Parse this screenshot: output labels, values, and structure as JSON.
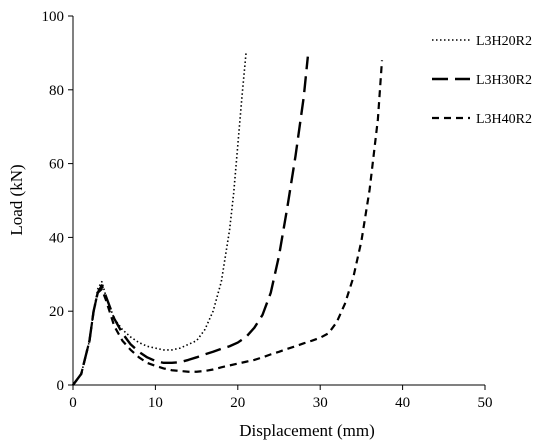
{
  "chart_data": {
    "type": "line",
    "xlabel": "Displacement (mm)",
    "ylabel": "Load (kN)",
    "xlim": [
      0,
      50
    ],
    "ylim": [
      0,
      100
    ],
    "xticks": [
      0,
      10,
      20,
      30,
      40,
      50
    ],
    "yticks": [
      0,
      20,
      40,
      60,
      80,
      100
    ],
    "x_tick_labels": [
      "0",
      "10",
      "20",
      "30",
      "40",
      "50"
    ],
    "y_tick_labels": [
      "0",
      "20",
      "40",
      "60",
      "80",
      "100"
    ],
    "grid": false,
    "legend_position": "right",
    "series": [
      {
        "name": "L3H20R2",
        "style": "dotted",
        "x": [
          0,
          1,
          2,
          2.5,
          3,
          3.5,
          4,
          5,
          6,
          7,
          8,
          9,
          10,
          11,
          12,
          13,
          14,
          15,
          16,
          17,
          18,
          19,
          19.5,
          20,
          20.5,
          21
        ],
        "y": [
          0,
          3,
          12,
          20,
          26,
          28,
          24,
          18,
          15,
          13,
          11.5,
          10.5,
          10,
          9.5,
          9.5,
          10,
          11,
          12,
          15,
          20,
          28,
          42,
          52,
          65,
          78,
          90
        ]
      },
      {
        "name": "L3H30R2",
        "style": "long-dash",
        "x": [
          0,
          1,
          2,
          2.5,
          3,
          3.5,
          4,
          5,
          6,
          7,
          8,
          9,
          10,
          11,
          12,
          13,
          14,
          15,
          16,
          17,
          18,
          19,
          20,
          21,
          22,
          23,
          24,
          25,
          26,
          27,
          28,
          28.5
        ],
        "y": [
          0,
          3,
          12,
          20,
          25,
          27,
          24,
          18,
          14,
          11,
          9,
          7.5,
          6.5,
          6,
          6,
          6.2,
          6.8,
          7.5,
          8.3,
          9,
          9.8,
          10.5,
          11.5,
          13,
          15.5,
          19,
          25,
          35,
          48,
          62,
          78,
          89
        ]
      },
      {
        "name": "L3H40R2",
        "style": "short-dash",
        "x": [
          0,
          1,
          2,
          2.5,
          3,
          3.5,
          4,
          5,
          6,
          7,
          8,
          9,
          10,
          11,
          12,
          13,
          14,
          15,
          16,
          17,
          18,
          19,
          20,
          21,
          22,
          23,
          24,
          25,
          26,
          27,
          28,
          29,
          30,
          31,
          32,
          33,
          34,
          35,
          36,
          37,
          37.5
        ],
        "y": [
          0,
          3,
          12,
          20,
          25,
          26,
          23,
          16,
          12,
          9.5,
          7.5,
          6,
          5.2,
          4.5,
          4,
          3.8,
          3.6,
          3.6,
          3.8,
          4.2,
          4.8,
          5.3,
          5.8,
          6.3,
          6.8,
          7.5,
          8.3,
          9,
          9.8,
          10.5,
          11.3,
          12,
          12.8,
          14,
          17,
          22,
          29,
          39,
          53,
          72,
          88
        ]
      }
    ]
  }
}
